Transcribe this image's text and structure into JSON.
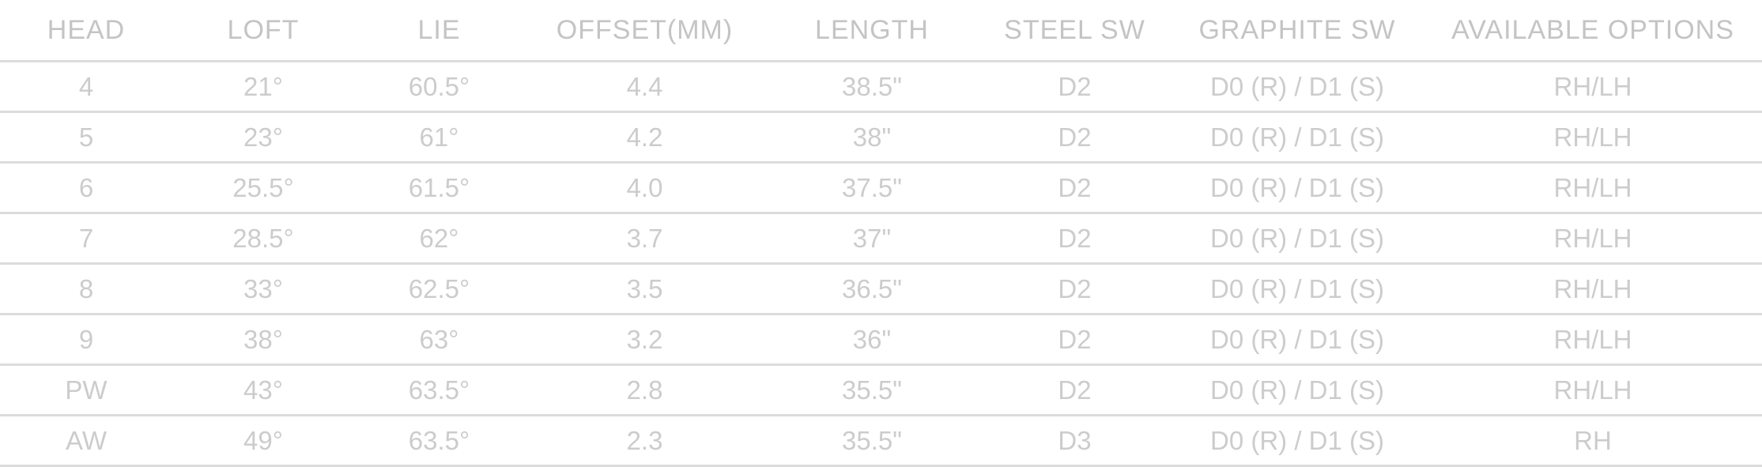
{
  "headers": {
    "head": "HEAD",
    "loft": "LOFT",
    "lie": "LIE",
    "offset": "OFFSET(MM)",
    "length": "LENGTH",
    "steel_sw": "STEEL SW",
    "graphite_sw": "GRAPHITE SW",
    "options": "AVAILABLE OPTIONS"
  },
  "rows": [
    {
      "head": "4",
      "loft": "21°",
      "lie": "60.5°",
      "offset": "4.4",
      "length": "38.5\"",
      "steel_sw": "D2",
      "graphite_sw": "D0 (R) / D1 (S)",
      "options": "RH/LH"
    },
    {
      "head": "5",
      "loft": "23°",
      "lie": "61°",
      "offset": "4.2",
      "length": "38\"",
      "steel_sw": "D2",
      "graphite_sw": "D0 (R) / D1 (S)",
      "options": "RH/LH"
    },
    {
      "head": "6",
      "loft": "25.5°",
      "lie": "61.5°",
      "offset": "4.0",
      "length": "37.5\"",
      "steel_sw": "D2",
      "graphite_sw": "D0 (R) / D1 (S)",
      "options": "RH/LH"
    },
    {
      "head": "7",
      "loft": "28.5°",
      "lie": "62°",
      "offset": "3.7",
      "length": "37\"",
      "steel_sw": "D2",
      "graphite_sw": "D0 (R) / D1 (S)",
      "options": "RH/LH"
    },
    {
      "head": "8",
      "loft": "33°",
      "lie": "62.5°",
      "offset": "3.5",
      "length": "36.5\"",
      "steel_sw": "D2",
      "graphite_sw": "D0 (R) / D1 (S)",
      "options": "RH/LH"
    },
    {
      "head": "9",
      "loft": "38°",
      "lie": "63°",
      "offset": "3.2",
      "length": "36\"",
      "steel_sw": "D2",
      "graphite_sw": "D0 (R) / D1 (S)",
      "options": "RH/LH"
    },
    {
      "head": "PW",
      "loft": "43°",
      "lie": "63.5°",
      "offset": "2.8",
      "length": "35.5\"",
      "steel_sw": "D2",
      "graphite_sw": "D0 (R) / D1 (S)",
      "options": "RH/LH"
    },
    {
      "head": "AW",
      "loft": "49°",
      "lie": "63.5°",
      "offset": "2.3",
      "length": "35.5\"",
      "steel_sw": "D3",
      "graphite_sw": "D0 (R) / D1 (S)",
      "options": "RH"
    }
  ]
}
